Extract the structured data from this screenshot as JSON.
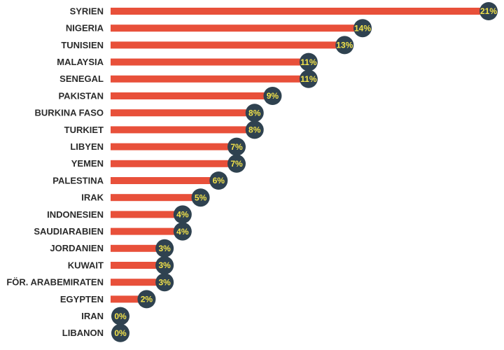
{
  "chart_data": {
    "type": "bar",
    "orientation": "horizontal",
    "categories": [
      "SYRIEN",
      "NIGERIA",
      "TUNISIEN",
      "MALAYSIA",
      "SENEGAL",
      "PAKISTAN",
      "BURKINA FASO",
      "TURKIET",
      "LIBYEN",
      "YEMEN",
      "PALESTINA",
      "IRAK",
      "INDONESIEN",
      "SAUDIARABIEN",
      "JORDANIEN",
      "KUWAIT",
      "FÖR. ARABEMIRATEN",
      "EGYPTEN",
      "IRAN",
      "LIBANON"
    ],
    "values": [
      21,
      14,
      13,
      11,
      11,
      9,
      8,
      8,
      7,
      7,
      6,
      5,
      4,
      4,
      3,
      3,
      3,
      2,
      0,
      0
    ],
    "value_labels": [
      "21%",
      "14%",
      "13%",
      "11%",
      "11%",
      "9%",
      "8%",
      "8%",
      "7%",
      "7%",
      "6%",
      "5%",
      "4%",
      "4%",
      "3%",
      "3%",
      "3%",
      "2%",
      "0%",
      "0%"
    ],
    "unit": "%",
    "xlim": [
      0,
      21
    ],
    "grid": false,
    "colors": {
      "bar": "#e8503a",
      "bubble": "#2f4250",
      "bubble_text": "#f2e24a",
      "label": "#2b2b2b"
    }
  }
}
